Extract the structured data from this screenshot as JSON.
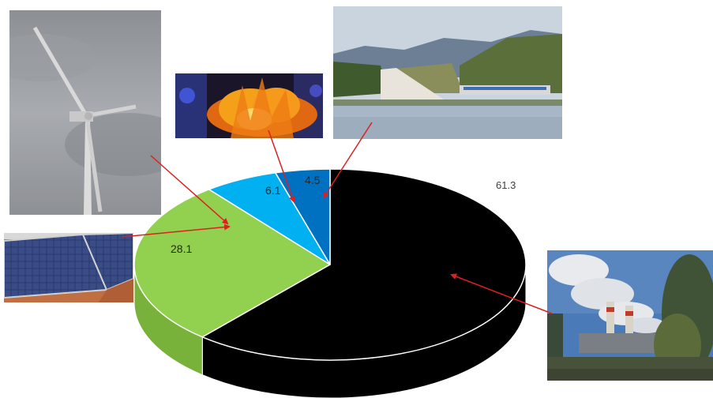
{
  "chart_data": {
    "type": "pie",
    "title": "",
    "slices": [
      {
        "label": "61.3",
        "value": 61.3,
        "color": "#000000",
        "side_color": "#000000",
        "picture": "coal-power-plant-photo"
      },
      {
        "label": "28.1",
        "value": 28.1,
        "color": "#92D050",
        "side_color": "#78B23A",
        "picture": "wind-turbine-photo"
      },
      {
        "label": "6.1",
        "value": 6.1,
        "color": "#00B0F0",
        "side_color": "#0095CC",
        "picture": "biomass-fire-photo"
      },
      {
        "label": "4.5",
        "value": 4.5,
        "color": "#0070C0",
        "side_color": "#005A9C",
        "picture": "hydro-dam-photo"
      }
    ],
    "extra_pictures": [
      "solar-panel-photo"
    ],
    "style": "3d-tilted",
    "legend": "none",
    "arrow_color": "#DD1F1F"
  }
}
